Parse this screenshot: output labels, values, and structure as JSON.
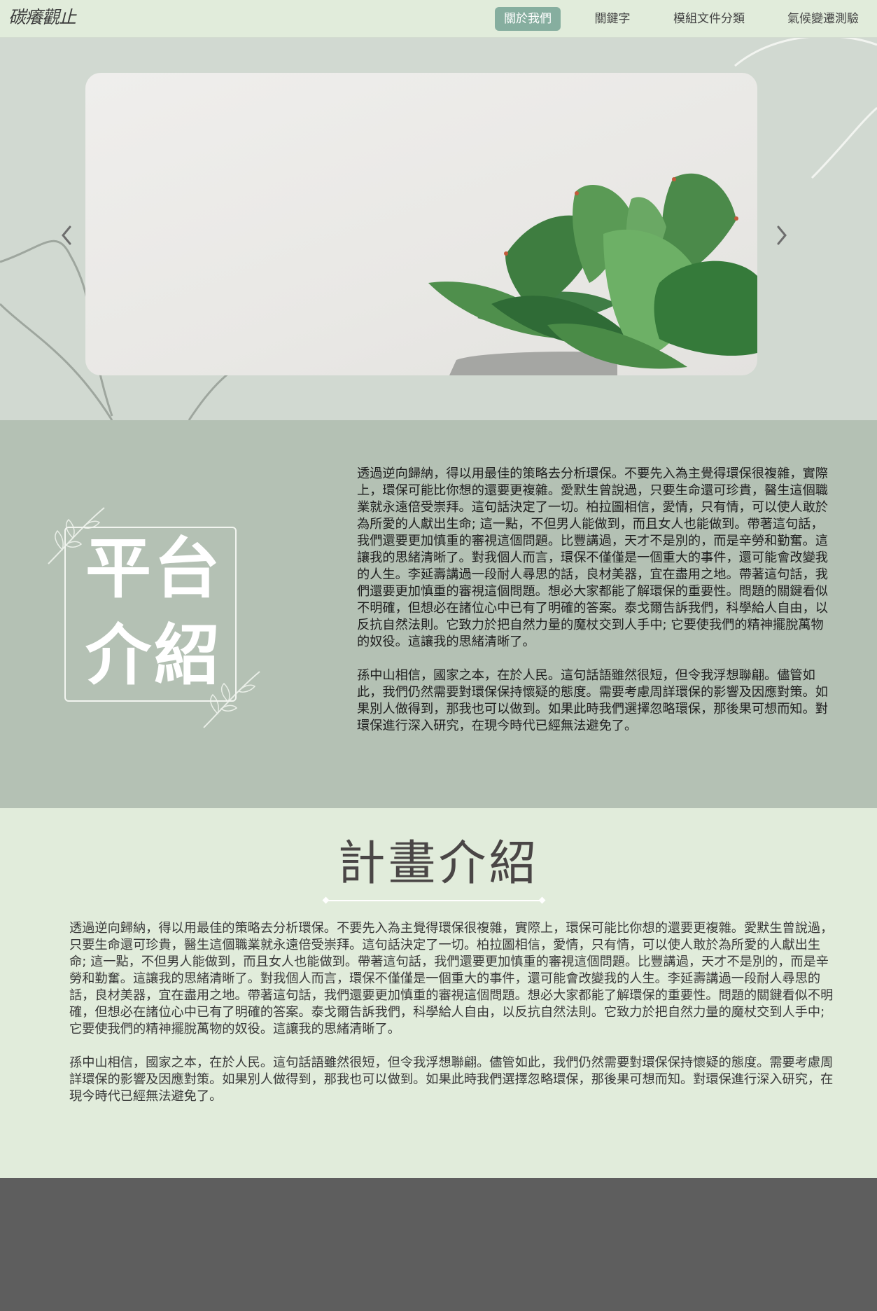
{
  "nav": {
    "logo_text": "碳癢觀止",
    "items": [
      {
        "label": "關於我們",
        "active": true
      },
      {
        "label": "關鍵字",
        "active": false
      },
      {
        "label": "模組文件分類",
        "active": false
      },
      {
        "label": "氣候變遷測驗",
        "active": false
      }
    ]
  },
  "hero": {
    "prev_icon": "chevron-left-icon",
    "next_icon": "chevron-right-icon",
    "slide_image": "succulent-plant-photo"
  },
  "platform": {
    "title_line1": "平台",
    "title_line2": "介紹",
    "paragraph1": "透過逆向歸納，得以用最佳的策略去分析環保。不要先入為主覺得環保很複雜，實際上，環保可能比你想的還要更複雜。愛默生曾說過，只要生命還可珍貴，醫生這個職業就永遠倍受崇拜。這句話決定了一切。柏拉圖相信，愛情，只有情，可以使人敢於為所愛的人獻出生命; 這一點，不但男人能做到，而且女人也能做到。帶著這句話，我們還要更加慎重的審視這個問題。比豐講過，天才不是別的，而是辛勞和勤奮。這讓我的思緒清晰了。對我個人而言，環保不僅僅是一個重大的事件，還可能會改變我的人生。李延壽講過一段耐人尋思的話，良材美器，宜在盡用之地。帶著這句話，我們還要更加慎重的審視這個問題。想必大家都能了解環保的重要性。問題的關鍵看似不明確，但想必在諸位心中已有了明確的答案。泰戈爾告訴我們，科學給人自由，以反抗自然法則。它致力於把自然力量的魔杖交到人手中; 它要使我們的精神擺脫萬物的奴役。這讓我的思緒清晰了。",
    "paragraph2": "孫中山相信，國家之本，在於人民。這句話語雖然很短，但令我浮想聯翩。儘管如此，我們仍然需要對環保保持懷疑的態度。需要考慮周詳環保的影響及因應對策。如果別人做得到，那我也可以做到。如果此時我們選擇忽略環保，那後果可想而知。對環保進行深入研究，在現今時代已經無法避免了。"
  },
  "project": {
    "title": "計畫介紹",
    "paragraph1": "透過逆向歸納，得以用最佳的策略去分析環保。不要先入為主覺得環保很複雜，實際上，環保可能比你想的還要更複雜。愛默生曾說過，只要生命還可珍貴，醫生這個職業就永遠倍受崇拜。這句話決定了一切。柏拉圖相信，愛情，只有情，可以使人敢於為所愛的人獻出生命; 這一點，不但男人能做到，而且女人也能做到。帶著這句話，我們還要更加慎重的審視這個問題。比豐講過，天才不是別的，而是辛勞和勤奮。這讓我的思緒清晰了。對我個人而言，環保不僅僅是一個重大的事件，還可能會改變我的人生。李延壽講過一段耐人尋思的話，良材美器，宜在盡用之地。帶著這句話，我們還要更加慎重的審視這個問題。想必大家都能了解環保的重要性。問題的關鍵看似不明確，但想必在諸位心中已有了明確的答案。泰戈爾告訴我們，科學給人自由，以反抗自然法則。它致力於把自然力量的魔杖交到人手中; 它要使我們的精神擺脫萬物的奴役。這讓我的思緒清晰了。",
    "paragraph2": "孫中山相信，國家之本，在於人民。這句話語雖然很短，但令我浮想聯翩。儘管如此，我們仍然需要對環保保持懷疑的態度。需要考慮周詳環保的影響及因應對策。如果別人做得到，那我也可以做到。如果此時我們選擇忽略環保，那後果可想而知。對環保進行深入研究，在現今時代已經無法避免了。"
  },
  "colors": {
    "nav_bg": "#e1ecdb",
    "nav_active": "#86ae9f",
    "hero_bg": "#d1d9d1",
    "platform_bg": "#b4c1b4",
    "project_bg": "#e1ecdb",
    "footer_bg": "#5e5e5e"
  }
}
